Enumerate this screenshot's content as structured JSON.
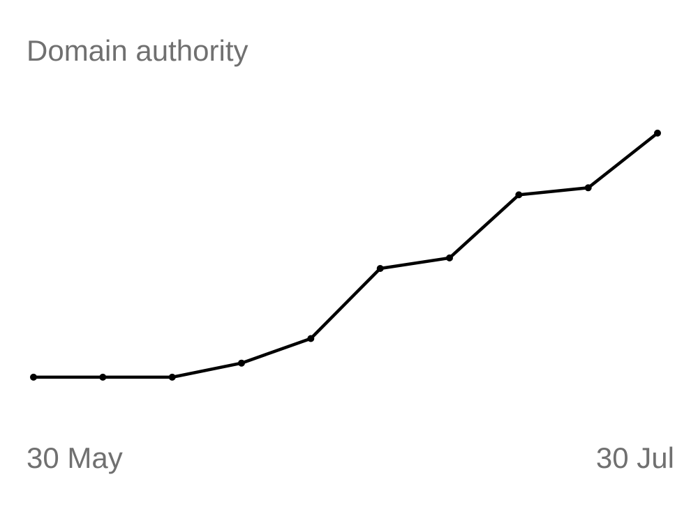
{
  "chart_data": {
    "type": "line",
    "title": "Domain authority",
    "xlabel": "",
    "ylabel": "",
    "x_tick_labels": [
      "30 May",
      "30 Jul"
    ],
    "x": [
      "30 May",
      "6 Jun",
      "13 Jun",
      "20 Jun",
      "27 Jun",
      "4 Jul",
      "11 Jul",
      "18 Jul",
      "25 Jul",
      "30 Jul"
    ],
    "series": [
      {
        "values": [
          20,
          20,
          20,
          22,
          25.5,
          35.5,
          37,
          46,
          47,
          54.8
        ]
      }
    ],
    "ylim": [
      0,
      70
    ],
    "grid": false,
    "legend": "none",
    "line_color": "#000000",
    "label_color": "#707070"
  }
}
